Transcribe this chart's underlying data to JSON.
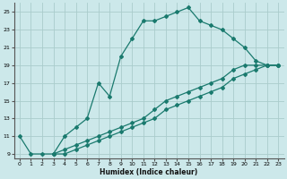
{
  "xlabel": "Humidex (Indice chaleur)",
  "bg_color": "#cce8ea",
  "grid_color": "#aacccc",
  "line_color": "#1a7a6e",
  "xlim": [
    -0.5,
    23.5
  ],
  "ylim": [
    8.5,
    26.0
  ],
  "xticks": [
    0,
    1,
    2,
    3,
    4,
    5,
    6,
    7,
    8,
    9,
    10,
    11,
    12,
    13,
    14,
    15,
    16,
    17,
    18,
    19,
    20,
    21,
    22,
    23
  ],
  "yticks": [
    9,
    11,
    13,
    15,
    17,
    19,
    21,
    23,
    25
  ],
  "curves": [
    {
      "x": [
        0,
        1,
        2,
        3,
        4,
        5,
        6,
        7,
        8,
        9,
        10,
        11,
        12,
        13,
        14,
        15,
        16,
        17,
        18,
        19,
        20,
        21,
        22,
        23
      ],
      "y": [
        11,
        9,
        9,
        9,
        11,
        12,
        13,
        17,
        15.5,
        20,
        22,
        24,
        24,
        24.5,
        25,
        25.5,
        24,
        23.5,
        23,
        22,
        21,
        19.5,
        19,
        19
      ]
    },
    {
      "x": [
        3,
        4,
        5,
        6,
        7,
        8,
        9,
        10,
        11,
        12,
        13,
        14,
        15,
        16,
        17,
        18,
        19,
        20,
        21,
        22,
        23
      ],
      "y": [
        9,
        9.5,
        10,
        10.5,
        11,
        11.5,
        12,
        12.5,
        13,
        14,
        15,
        15.5,
        16,
        16.5,
        17,
        17.5,
        18.5,
        19,
        19,
        19,
        19
      ]
    },
    {
      "x": [
        3,
        4,
        5,
        6,
        7,
        8,
        9,
        10,
        11,
        12,
        13,
        14,
        15,
        16,
        17,
        18,
        19,
        20,
        21,
        22,
        23
      ],
      "y": [
        9,
        9,
        9.5,
        10,
        10.5,
        11,
        11.5,
        12,
        12.5,
        13,
        14,
        14.5,
        15,
        15.5,
        16,
        16.5,
        17.5,
        18,
        18.5,
        19,
        19
      ]
    }
  ]
}
